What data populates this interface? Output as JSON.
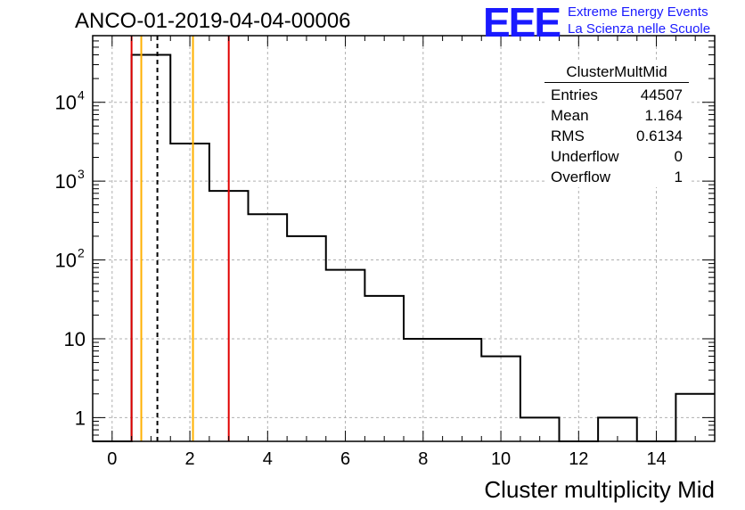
{
  "title": "ANCO-01-2019-04-04-00006",
  "logo": {
    "mark": "EEE",
    "line1": "Extreme Energy Events",
    "line2": "La Scienza nelle Scuole"
  },
  "stats_box": {
    "name": "ClusterMultMid",
    "rows": [
      {
        "label": "Entries",
        "value": "44507"
      },
      {
        "label": "Mean",
        "value": "1.164"
      },
      {
        "label": "RMS",
        "value": "0.6134"
      },
      {
        "label": "Underflow",
        "value": "0"
      },
      {
        "label": "Overflow",
        "value": "1"
      }
    ]
  },
  "chart_data": {
    "type": "histogram",
    "xlabel": "Cluster multiplicity Mid",
    "ylabel": "",
    "xlim": [
      -0.5,
      15.5
    ],
    "ylim": [
      0.5,
      70000
    ],
    "yscale": "log",
    "grid": true,
    "bin_edges": [
      -0.5,
      0.5,
      1.5,
      2.5,
      3.5,
      4.5,
      5.5,
      6.5,
      7.5,
      8.5,
      9.5,
      10.5,
      11.5,
      12.5,
      13.5,
      14.5,
      15.5
    ],
    "counts": [
      0,
      40000,
      3000,
      750,
      380,
      200,
      75,
      35,
      10,
      10,
      6,
      1,
      0,
      1,
      0,
      2
    ],
    "xticks": [
      0,
      2,
      4,
      6,
      8,
      10,
      12,
      14
    ],
    "yticks": [
      {
        "value": 1,
        "label": "1"
      },
      {
        "value": 10,
        "label": "10"
      },
      {
        "value": 100,
        "label": "10",
        "exp": "2"
      },
      {
        "value": 1000,
        "label": "10",
        "exp": "3"
      },
      {
        "value": 10000,
        "label": "10",
        "exp": "4"
      }
    ],
    "vlines": [
      {
        "x": 0.5,
        "color": "#e00000",
        "style": "solid"
      },
      {
        "x": 0.75,
        "color": "#ffb000",
        "style": "solid"
      },
      {
        "x": 1.164,
        "color": "#000000",
        "style": "dashed"
      },
      {
        "x": 2.08,
        "color": "#ffb000",
        "style": "solid"
      },
      {
        "x": 3.0,
        "color": "#e00000",
        "style": "solid"
      }
    ],
    "colors": {
      "hist": "#000000",
      "grid": "#b0b0b0"
    }
  }
}
